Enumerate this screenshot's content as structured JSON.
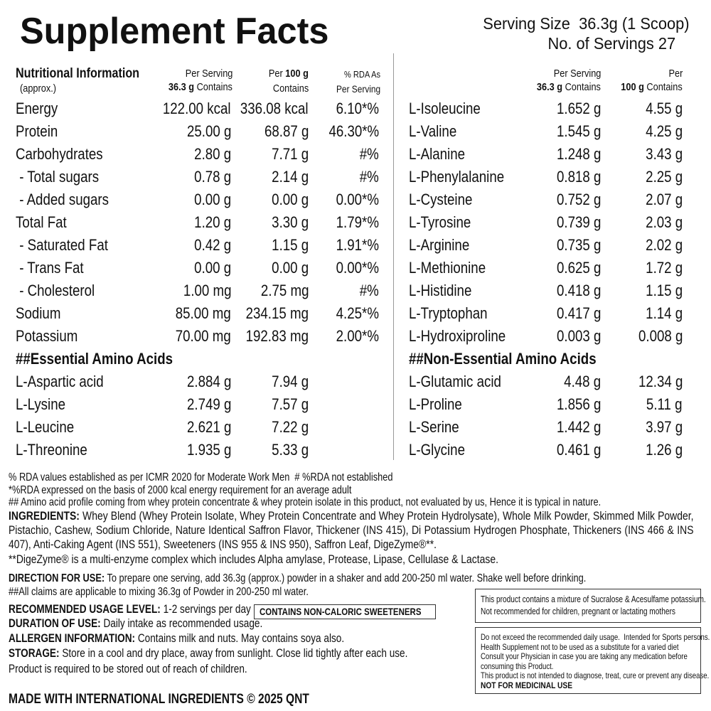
{
  "header": {
    "title": "Supplement Facts",
    "serving_size": "Serving Size  36.3g (1 Scoop)",
    "servings": "No. of Servings 27"
  },
  "left_table": {
    "header": {
      "name": "Nutritional Information",
      "approx": "(approx.)",
      "per_serving": {
        "line1": "Per Serving",
        "bold": "36.3 g",
        "line2": "Contains"
      },
      "per_100g": {
        "line1": "Per",
        "bold": "100 g",
        "line2": "Contains"
      },
      "rda": [
        "% RDA As",
        "Per Serving"
      ]
    },
    "rows": [
      [
        "Energy",
        "122.00 kcal",
        "336.08 kcal",
        "6.10*%"
      ],
      [
        "Protein",
        "25.00 g",
        "68.87 g",
        "46.30*%"
      ],
      [
        "Carbohydrates",
        "2.80 g",
        "7.71 g",
        "#%"
      ],
      [
        " - Total sugars",
        "0.78 g",
        "2.14 g",
        "#%"
      ],
      [
        " - Added sugars",
        "0.00 g",
        "0.00 g",
        "0.00*%"
      ],
      [
        "Total Fat",
        "1.20 g",
        "3.30 g",
        "1.79*%"
      ],
      [
        " - Saturated Fat",
        "0.42 g",
        "1.15 g",
        "1.91*%"
      ],
      [
        " - Trans Fat",
        "0.00 g",
        "0.00 g",
        "0.00*%"
      ],
      [
        " - Cholesterol",
        "1.00 mg",
        "2.75 mg",
        "#%"
      ],
      [
        "Sodium",
        "85.00 mg",
        "234.15 mg",
        "4.25*%"
      ],
      [
        "Potassium",
        "70.00 mg",
        "192.83 mg",
        "2.00*%"
      ]
    ],
    "section": "##Essential Amino Acids",
    "section_rows": [
      [
        "L-Aspartic acid",
        "2.884 g",
        "7.94 g"
      ],
      [
        "L-Lysine",
        "2.749 g",
        "7.57 g"
      ],
      [
        "L-Leucine",
        "2.621 g",
        "7.22 g"
      ],
      [
        "L-Threonine",
        "1.935 g",
        "5.33 g"
      ]
    ]
  },
  "right_table": {
    "header": {
      "per_serving": {
        "line1": "Per Serving",
        "bold": "36.3 g",
        "line2": "Contains"
      },
      "per_100g": {
        "line1": "Per",
        "bold": "100 g",
        "line2": "Contains"
      }
    },
    "rows": [
      [
        "L-Isoleucine",
        "1.652 g",
        "4.55 g"
      ],
      [
        "L-Valine",
        "1.545 g",
        "4.25 g"
      ],
      [
        "L-Alanine",
        "1.248 g",
        "3.43 g"
      ],
      [
        "L-Phenylalanine",
        "0.818 g",
        "2.25 g"
      ],
      [
        "L-Cysteine",
        "0.752 g",
        "2.07 g"
      ],
      [
        "L-Tyrosine",
        "0.739 g",
        "2.03 g"
      ],
      [
        "L-Arginine",
        "0.735 g",
        "2.02 g"
      ],
      [
        "L-Methionine",
        "0.625 g",
        "1.72 g"
      ],
      [
        "L-Histidine",
        "0.418 g",
        "1.15 g"
      ],
      [
        "L-Tryptophan",
        "0.417 g",
        "1.14 g"
      ],
      [
        "L-Hydroxiproline",
        "0.003 g",
        "0.008 g"
      ]
    ],
    "section": "##Non-Essential Amino Acids",
    "section_rows": [
      [
        "L-Glutamic acid",
        "4.48 g",
        "12.34 g"
      ],
      [
        "L-Proline",
        "1.856 g",
        "5.11 g"
      ],
      [
        "L-Serine",
        "1.442 g",
        "3.97 g"
      ],
      [
        "L-Glycine",
        "0.461 g",
        "1.26 g"
      ]
    ]
  },
  "notes": [
    "% RDA values established as per ICMR 2020 for Moderate Work Men  # %RDA not established",
    "*%RDA expressed on the basis of 2000 kcal energy requirement for an average adult",
    "## Amino acid profile coming from whey protein concentrate & whey protein isolate in this product, not evaluated by us, Hence it is typical in nature."
  ],
  "ingredients": {
    "label": "INGREDIENTS:",
    "text": "Whey Blend (Whey Protein Isolate, Whey Protein Concentrate and Whey Protein Hydrolysate), Whole Milk Powder, Skimmed Milk Powder, Pistachio, Cashew, Sodium Chloride, Nature Identical Saffron Flavor, Thickener (INS 415), Di Potassium Hydrogen Phosphate, Thickeners (INS 466 & INS 407), Anti-Caking Agent (INS 551), Sweeteners (INS 955 & INS 950), Saffron Leaf, DigeZyme®**."
  },
  "digezyme": "**DigeZyme® is a multi-enzyme complex which includes Alpha amylase, Protease, Lipase, Cellulase & Lactase.",
  "direction": {
    "label": "DIRECTION FOR USE:",
    "text": "To prepare one serving, add 36.3g (approx.) powder in a shaker and add 200-250 ml water. Shake well before drinking."
  },
  "claims": "##All claims are applicable to mixing 36.3g of Powder in 200-250 ml water.",
  "recommended": {
    "label": "RECOMMENDED USAGE LEVEL:",
    "text": "1-2 servings per day"
  },
  "sweetener_badge": "CONTAINS NON-CALORIC SWEETENERS",
  "duration": {
    "label": "DURATION OF USE:",
    "text": "Daily intake as recommended usage."
  },
  "allergen": {
    "label": "ALLERGEN INFORMATION:",
    "text": "Contains milk and nuts. May contains soya also."
  },
  "storage": {
    "label": "STORAGE:",
    "text": "Store in a cool and dry place, away from sunlight. Close lid tightly after each use."
  },
  "reach": "Product is required to be stored out of reach of children.",
  "made_with": "MADE WITH INTERNATIONAL INGREDIENTS © 2025 QNT",
  "box1": [
    "This product contains a mixture of Sucralose & Acesulfame potassium.",
    "Not recommended for children, pregnant or lactating mothers"
  ],
  "box2": {
    "lines": [
      "Do not exceed the recommended daily usage.  Intended for Sports persons.",
      "Health Supplement not to be used as a substitute for a varied diet",
      "Consult your Physician in case you are taking any medication before",
      "consuming this Product.",
      "This product is not intended to diagnose, treat, cure or prevent any disease."
    ],
    "bold": "NOT FOR MEDICINAL USE"
  }
}
